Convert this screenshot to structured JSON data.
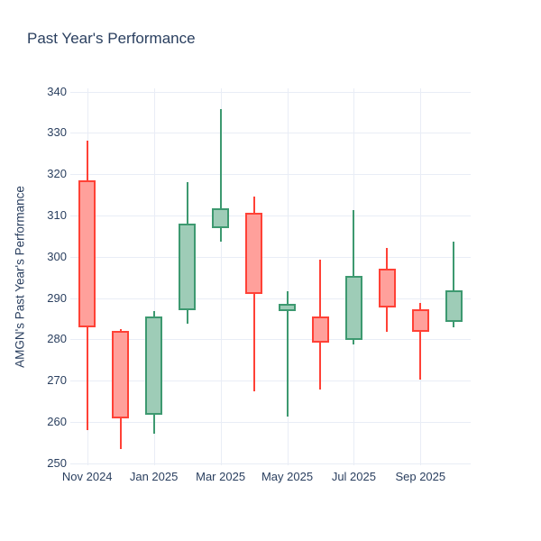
{
  "title": "Past Year's Performance",
  "chart_data": {
    "type": "candlestick",
    "title": "Past Year's Performance",
    "xlabel": "",
    "ylabel": "AMGN's Past Year's Performance",
    "grid": true,
    "legend": "none",
    "categories": [
      "Nov 2024",
      "Dec 2024",
      "Jan 2025",
      "Feb 2025",
      "Mar 2025",
      "Apr 2025",
      "May 2025",
      "Jun 2025",
      "Jul 2025",
      "Aug 2025",
      "Sep 2025",
      "Oct 2025"
    ],
    "series": [
      {
        "month": "Nov 2024",
        "open": 318.6,
        "high": 328.1,
        "low": 257.9,
        "close": 283.0,
        "direction": "down"
      },
      {
        "month": "Dec 2024",
        "open": 282.1,
        "high": 282.5,
        "low": 253.4,
        "close": 260.8,
        "direction": "down"
      },
      {
        "month": "Jan 2025",
        "open": 261.7,
        "high": 286.8,
        "low": 257.2,
        "close": 285.6,
        "direction": "up"
      },
      {
        "month": "Feb 2025",
        "open": 287.0,
        "high": 318.0,
        "low": 283.7,
        "close": 308.1,
        "direction": "up"
      },
      {
        "month": "Mar 2025",
        "open": 307.0,
        "high": 335.8,
        "low": 303.6,
        "close": 311.7,
        "direction": "up"
      },
      {
        "month": "Apr 2025",
        "open": 310.6,
        "high": 314.7,
        "low": 267.4,
        "close": 290.9,
        "direction": "down"
      },
      {
        "month": "May 2025",
        "open": 286.8,
        "high": 291.6,
        "low": 261.4,
        "close": 288.5,
        "direction": "up"
      },
      {
        "month": "Jun 2025",
        "open": 285.6,
        "high": 299.4,
        "low": 267.9,
        "close": 279.2,
        "direction": "down"
      },
      {
        "month": "Jul 2025",
        "open": 279.8,
        "high": 311.4,
        "low": 278.7,
        "close": 295.3,
        "direction": "up"
      },
      {
        "month": "Aug 2025",
        "open": 297.1,
        "high": 302.2,
        "low": 281.8,
        "close": 287.7,
        "direction": "down"
      },
      {
        "month": "Sep 2025",
        "open": 287.4,
        "high": 288.8,
        "low": 270.3,
        "close": 281.9,
        "direction": "down"
      },
      {
        "month": "Oct 2025",
        "open": 284.3,
        "high": 303.7,
        "low": 283.0,
        "close": 291.8,
        "direction": "up"
      }
    ],
    "y_ticks": [
      250,
      260,
      270,
      280,
      290,
      300,
      310,
      320,
      330,
      340
    ],
    "y_range": [
      249.5,
      340.8
    ],
    "x_tick_labels": [
      "Nov 2024",
      "Jan 2025",
      "Mar 2025",
      "May 2025",
      "Jul 2025",
      "Sep 2025"
    ],
    "x_tick_indices": [
      0,
      2,
      4,
      6,
      8,
      10
    ],
    "colors": {
      "increasing_line": "#3D9970",
      "increasing_fill": "#9ECCB7",
      "decreasing_line": "#FF4136",
      "decreasing_fill": "#FFA09B",
      "gridline": "#E9EDF6",
      "text": "#2a3f5f",
      "background": "#ffffff"
    }
  }
}
